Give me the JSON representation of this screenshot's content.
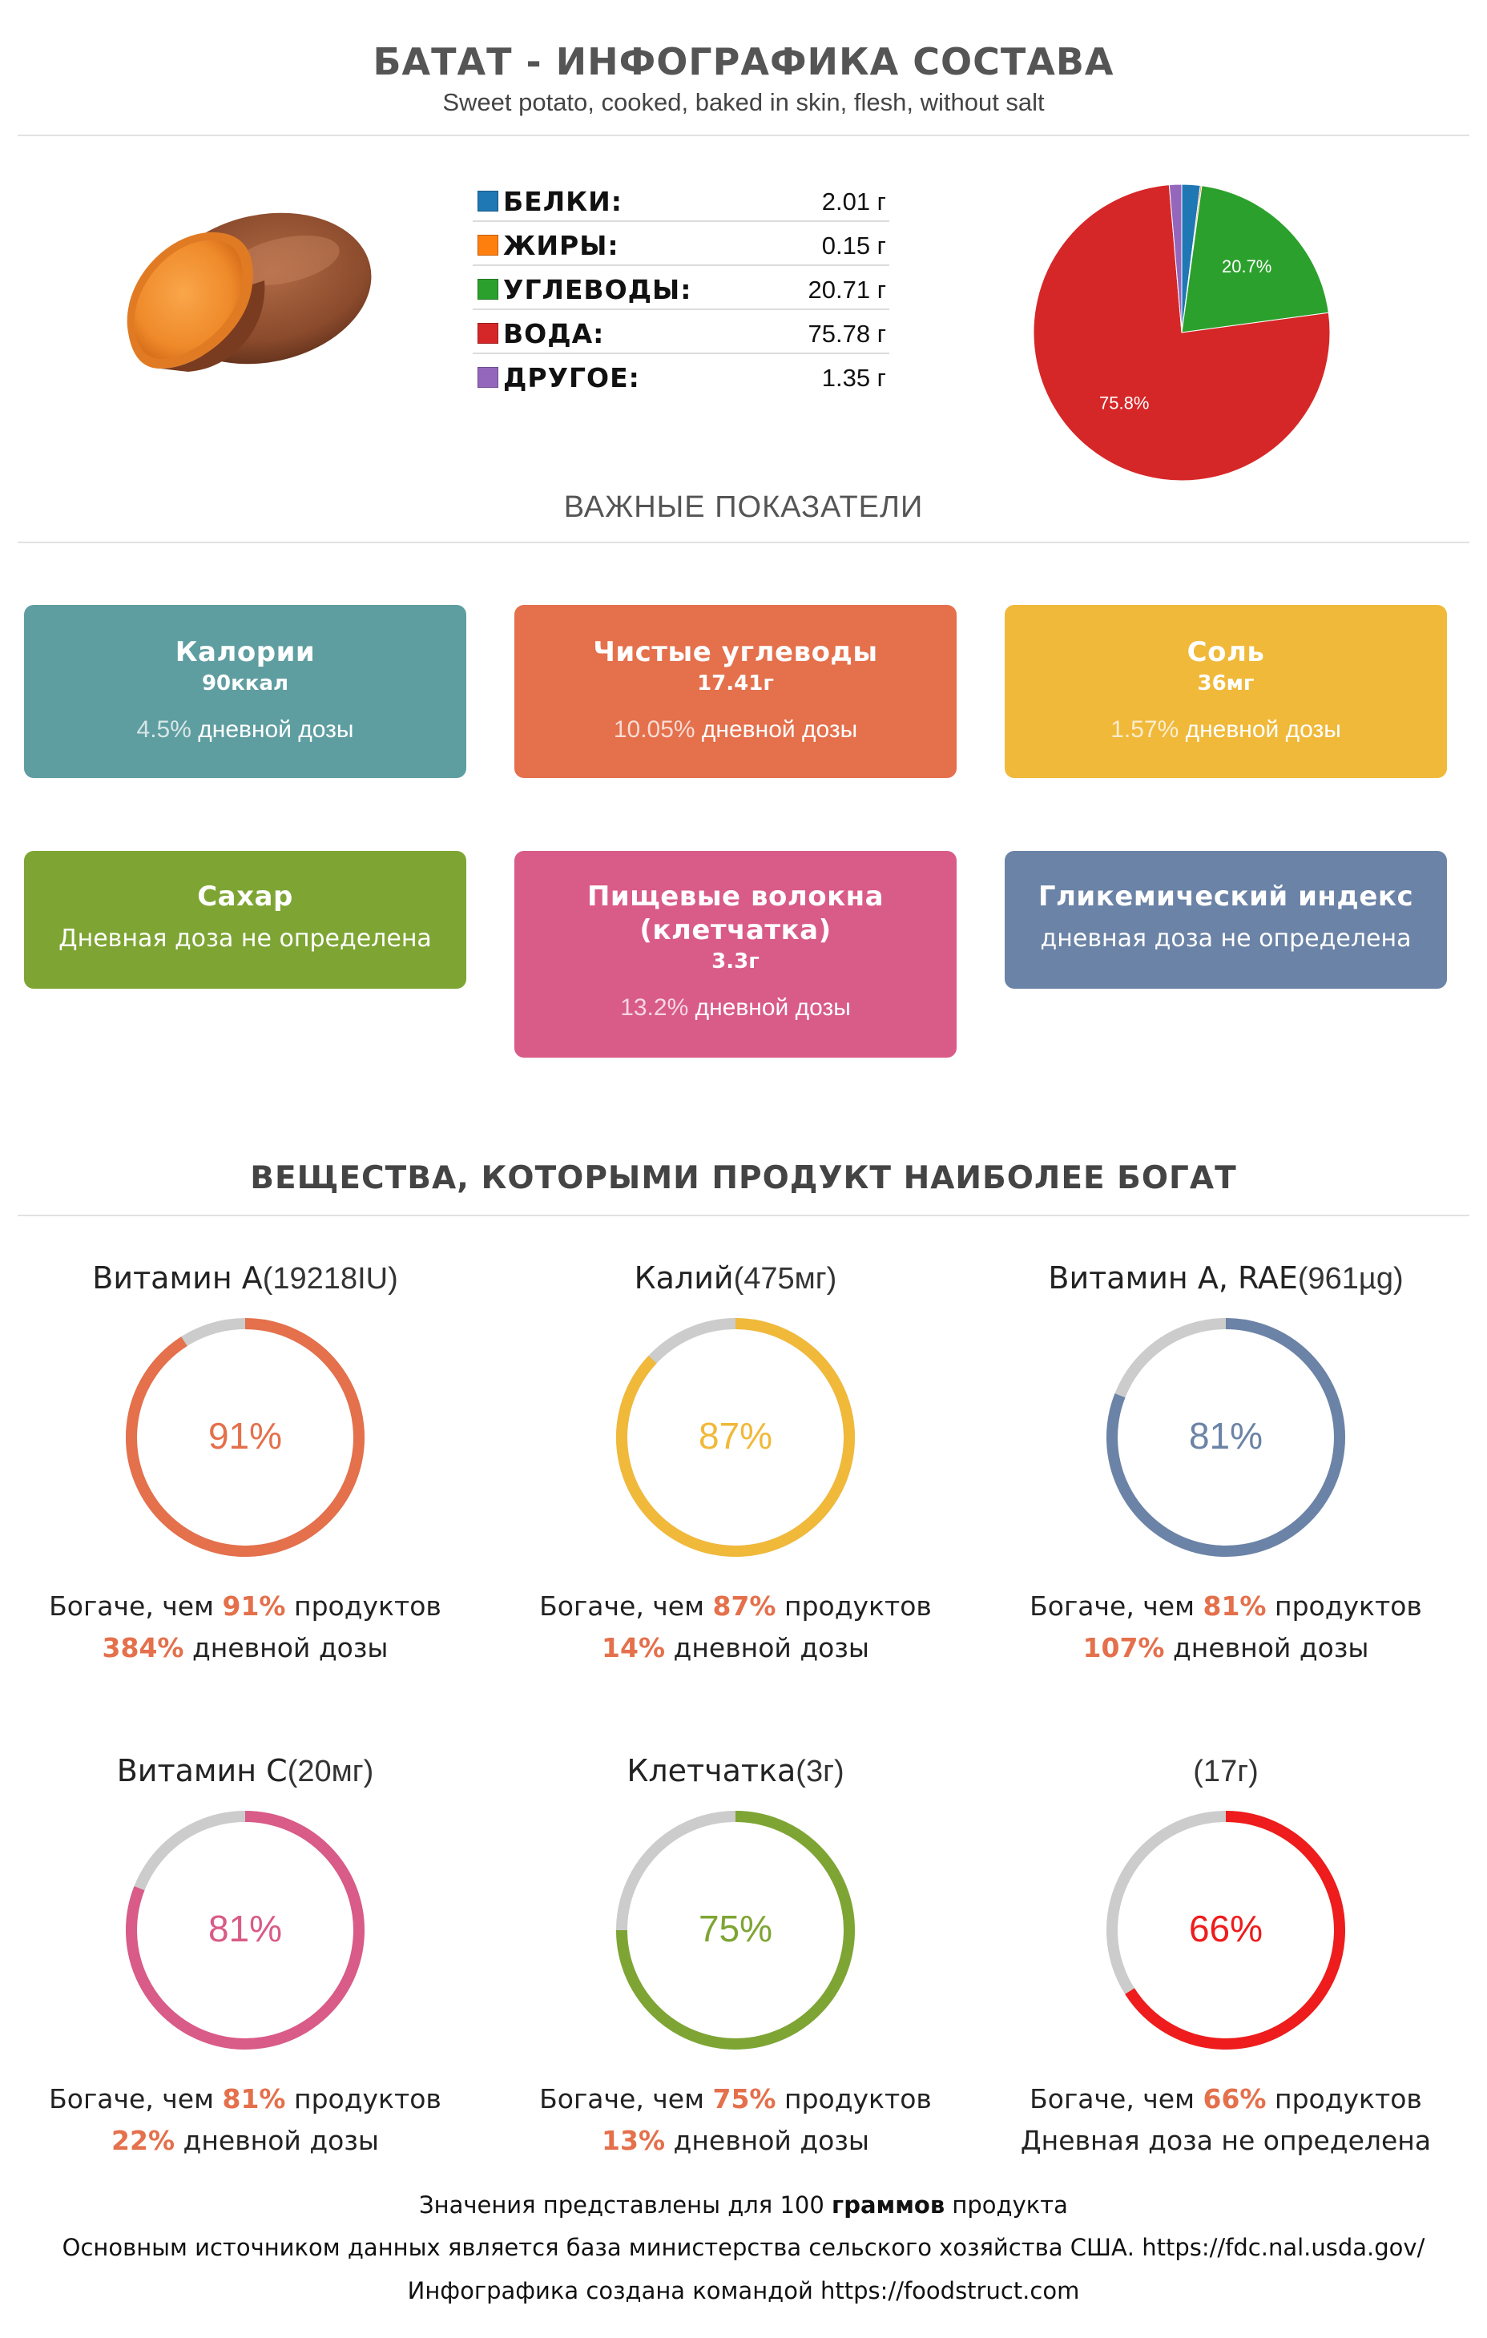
{
  "header": {
    "title": "БАТАТ - ИНФОГРАФИКА СОСТАВА",
    "subtitle": "Sweet potato, cooked, baked in skin, flesh, without salt"
  },
  "macros": [
    {
      "name": "БЕЛКИ",
      "value": "2.01 г",
      "color": "#1f77b4"
    },
    {
      "name": "ЖИРЫ",
      "value": "0.15 г",
      "color": "#ff7f0e"
    },
    {
      "name": "УГЛЕВОДЫ",
      "value": "20.71 г",
      "color": "#2ca02c"
    },
    {
      "name": "ВОДА",
      "value": "75.78 г",
      "color": "#d62728"
    },
    {
      "name": "ДРУГОЕ",
      "value": "1.35 г",
      "color": "#9467bd"
    }
  ],
  "chart_data": {
    "type": "pie",
    "labels": [
      "БЕЛКИ",
      "ЖИРЫ",
      "УГЛЕВОДЫ",
      "ВОДА",
      "ДРУГОЕ"
    ],
    "values": [
      2.01,
      0.15,
      20.71,
      75.78,
      1.35
    ],
    "colors": [
      "#1f77b4",
      "#ff7f0e",
      "#2ca02c",
      "#d62728",
      "#9467bd"
    ],
    "slice_labels": [
      "",
      "",
      "20.7%",
      "75.8%",
      ""
    ]
  },
  "sections": {
    "important": "ВАЖНЫЕ ПОКАЗАТЕЛИ",
    "rich": "ВЕЩЕСТВА, КОТОРЫМИ ПРОДУКТ НАИБОЛЕЕ БОГАТ"
  },
  "cards": {
    "calories": {
      "title": "Калории",
      "value": "90ккал",
      "pct": "4.5%",
      "note": " дневной дозы",
      "color": "#5f9ea0"
    },
    "net_carbs": {
      "title": "Чистые углеводы",
      "value": "17.41г",
      "pct": "10.05%",
      "note": " дневной дозы",
      "color": "#e4704c"
    },
    "salt": {
      "title": "Соль",
      "value": "36мг",
      "pct": "1.57%",
      "note": " дневной дозы",
      "color": "#f0b93a"
    },
    "sugar": {
      "title": "Сахар",
      "note": "Дневная доза не определена",
      "color": "#7ea534"
    },
    "fiber": {
      "title": "Пищевые волокна (клетчатка)",
      "value": "3.3г",
      "pct": "13.2%",
      "note": " дневной дозы",
      "color": "#d95b87"
    },
    "gi": {
      "title": "Гликемический индекс",
      "note": "дневная доза не определена",
      "color": "#6b83a6"
    }
  },
  "rings": [
    {
      "name": "Витамин A",
      "amount": "(19218IU)",
      "percent": 91,
      "percent_text": "91%",
      "color": "#e4704c",
      "richer_prefix": "Богаче, чем ",
      "richer_pct": "91%",
      "richer_suffix": " продуктов",
      "dose_pct": "384%",
      "dose_suffix": " дневной дозы"
    },
    {
      "name": "Калий",
      "amount": "(475мг)",
      "percent": 87,
      "percent_text": "87%",
      "color": "#f0b93a",
      "richer_prefix": "Богаче, чем ",
      "richer_pct": "87%",
      "richer_suffix": " продуктов",
      "dose_pct": "14%",
      "dose_suffix": " дневной дозы"
    },
    {
      "name": "Витамин A, RAE",
      "amount": "(961µg)",
      "percent": 81,
      "percent_text": "81%",
      "color": "#6b83a6",
      "richer_prefix": "Богаче, чем ",
      "richer_pct": "81%",
      "richer_suffix": " продуктов",
      "dose_pct": "107%",
      "dose_suffix": " дневной дозы"
    },
    {
      "name": "Витамин C",
      "amount": "(20мг)",
      "percent": 81,
      "percent_text": "81%",
      "color": "#d95b87",
      "richer_prefix": "Богаче, чем ",
      "richer_pct": "81%",
      "richer_suffix": " продуктов",
      "dose_pct": "22%",
      "dose_suffix": " дневной дозы"
    },
    {
      "name": "Клетчатка",
      "amount": "(3г)",
      "percent": 75,
      "percent_text": "75%",
      "color": "#7ea534",
      "richer_prefix": "Богаче, чем ",
      "richer_pct": "75%",
      "richer_suffix": " продуктов",
      "dose_pct": "13%",
      "dose_suffix": " дневной дозы"
    },
    {
      "name": "",
      "amount": "(17г)",
      "percent": 66,
      "percent_text": "66%",
      "color": "#ee1c1c",
      "richer_prefix": "Богаче, чем ",
      "richer_pct": "66%",
      "richer_suffix": " продуктов",
      "dose_full": "Дневная доза не определена"
    }
  ],
  "footer": {
    "line1_prefix": "Значения представлены для 100 ",
    "line1_bold": "граммов",
    "line1_suffix": " продукта",
    "line2": "Основным источником данных является база министерства сельского хозяйства США. https://fdc.nal.usda.gov/",
    "line3": "Инфографика создана командой https://foodstruct.com"
  }
}
